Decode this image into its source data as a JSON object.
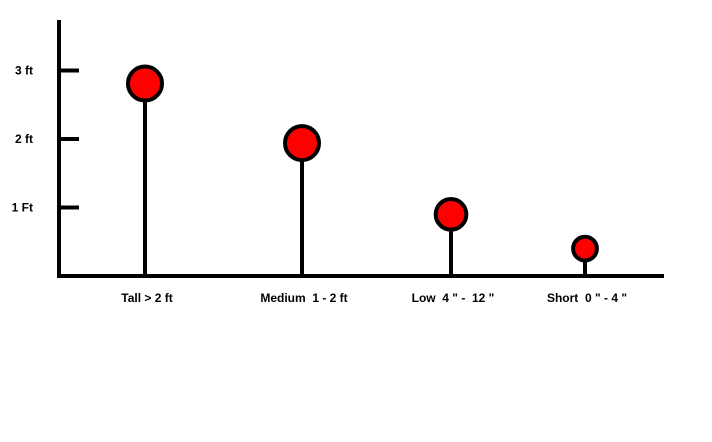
{
  "chart_data": {
    "type": "lollipop",
    "title": "",
    "xlabel": "",
    "ylabel": "",
    "ylim": [
      0,
      3.7
    ],
    "yticks": [
      {
        "value": 1,
        "label": "1 Ft"
      },
      {
        "value": 2,
        "label": "2 ft"
      },
      {
        "value": 3,
        "label": "3 ft"
      }
    ],
    "categories": [
      "Tall > 2 ft",
      "Medium  1 - 2 ft",
      "Low  4 \" -  12 \"",
      "Short  0 \" - 4 \""
    ],
    "values": [
      2.81,
      1.94,
      0.9,
      0.4
    ],
    "relative_marker_sizes": [
      1,
      1,
      0.9,
      0.7
    ],
    "grid": false,
    "colors": {
      "marker_fill": "#ff0000",
      "marker_stroke": "#000000",
      "axis": "#000000",
      "stem": "#000000"
    }
  }
}
